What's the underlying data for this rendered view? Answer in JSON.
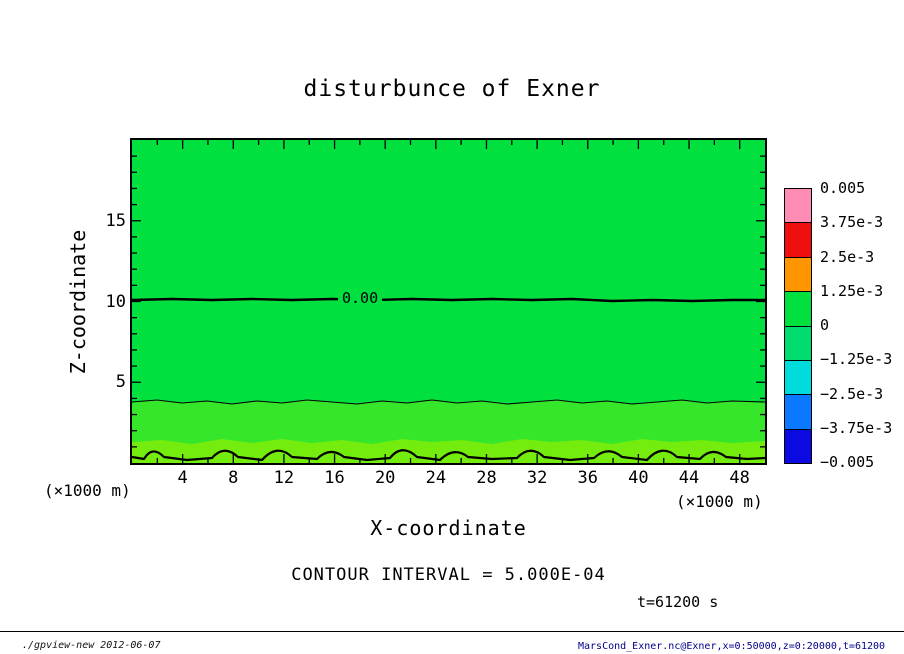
{
  "title": "disturbunce of Exner",
  "plot": {
    "x_axis": {
      "label": "X-coordinate",
      "unit": "(×1000 m)",
      "ticks": [
        "4",
        "8",
        "12",
        "16",
        "20",
        "24",
        "28",
        "32",
        "36",
        "40",
        "44",
        "48"
      ]
    },
    "y_axis": {
      "label": "Z-coordinate",
      "unit": "(×1000 m)",
      "ticks": [
        "5",
        "10",
        "15"
      ]
    },
    "contour_label": "0.00",
    "fill_colors": {
      "main": "#00e140",
      "band_mid": "#35e62a",
      "band_low": "#73ec0e"
    }
  },
  "colorbar": {
    "labels": [
      "0.005",
      "3.75e-3",
      "2.5e-3",
      "1.25e-3",
      "0",
      "−1.25e-3",
      "−2.5e-3",
      "−3.75e-3",
      "−0.005"
    ],
    "colors": [
      "#ff8cb4",
      "#f00f0f",
      "#ff9600",
      "#00e140",
      "#00dc6e",
      "#00dcdc",
      "#0a78ff",
      "#0a0ae1"
    ]
  },
  "caption": {
    "contour_interval": "CONTOUR INTERVAL = 5.000E-04",
    "time": "t=61200 s"
  },
  "footer": {
    "left": "./gpview-new  2012-06-07",
    "right": "MarsCond_Exner.nc@Exner,x=0:50000,z=0:20000,t=61200"
  },
  "chart_data": {
    "type": "contour",
    "title": "disturbunce of Exner",
    "xlabel": "X-coordinate (×1000 m)",
    "ylabel": "Z-coordinate (×1000 m)",
    "xlim": [
      0,
      50
    ],
    "ylim": [
      0,
      20
    ],
    "x_ticks": [
      4,
      8,
      12,
      16,
      20,
      24,
      28,
      32,
      36,
      40,
      44,
      48
    ],
    "y_ticks": [
      5,
      10,
      15
    ],
    "grid": false,
    "contour_interval": 0.0005,
    "colorbar": {
      "orientation": "vertical",
      "position": "right",
      "levels": [
        0.005,
        0.00375,
        0.0025,
        0.00125,
        0,
        -0.00125,
        -0.0025,
        -0.00375,
        -0.005
      ],
      "colors_top_to_bottom": [
        "#ff8cb4",
        "#f00f0f",
        "#ff9600",
        "#00e140",
        "#00dc6e",
        "#00dcdc",
        "#0a78ff",
        "#0a0ae1"
      ]
    },
    "contours": [
      {
        "value": 0.0,
        "label": "0.00",
        "approx_height_km": 10.2,
        "style": "bold nearly-horizontal line across full width"
      },
      {
        "value": null,
        "approx_height_km": 3.7,
        "style": "thin wavy line across full width at tone boundary"
      },
      {
        "value": null,
        "approx_height_km": 0.5,
        "style": "bold wiggly contours hugging the bottom boundary"
      }
    ],
    "field_description": "Exner function disturbance: nearly uniform green (values near 0) over most of the domain, slightly lighter green layer below z≈3.7, lightest yellow-green layer with strong wiggles adjacent to the surface",
    "time": "t=61200 s"
  }
}
